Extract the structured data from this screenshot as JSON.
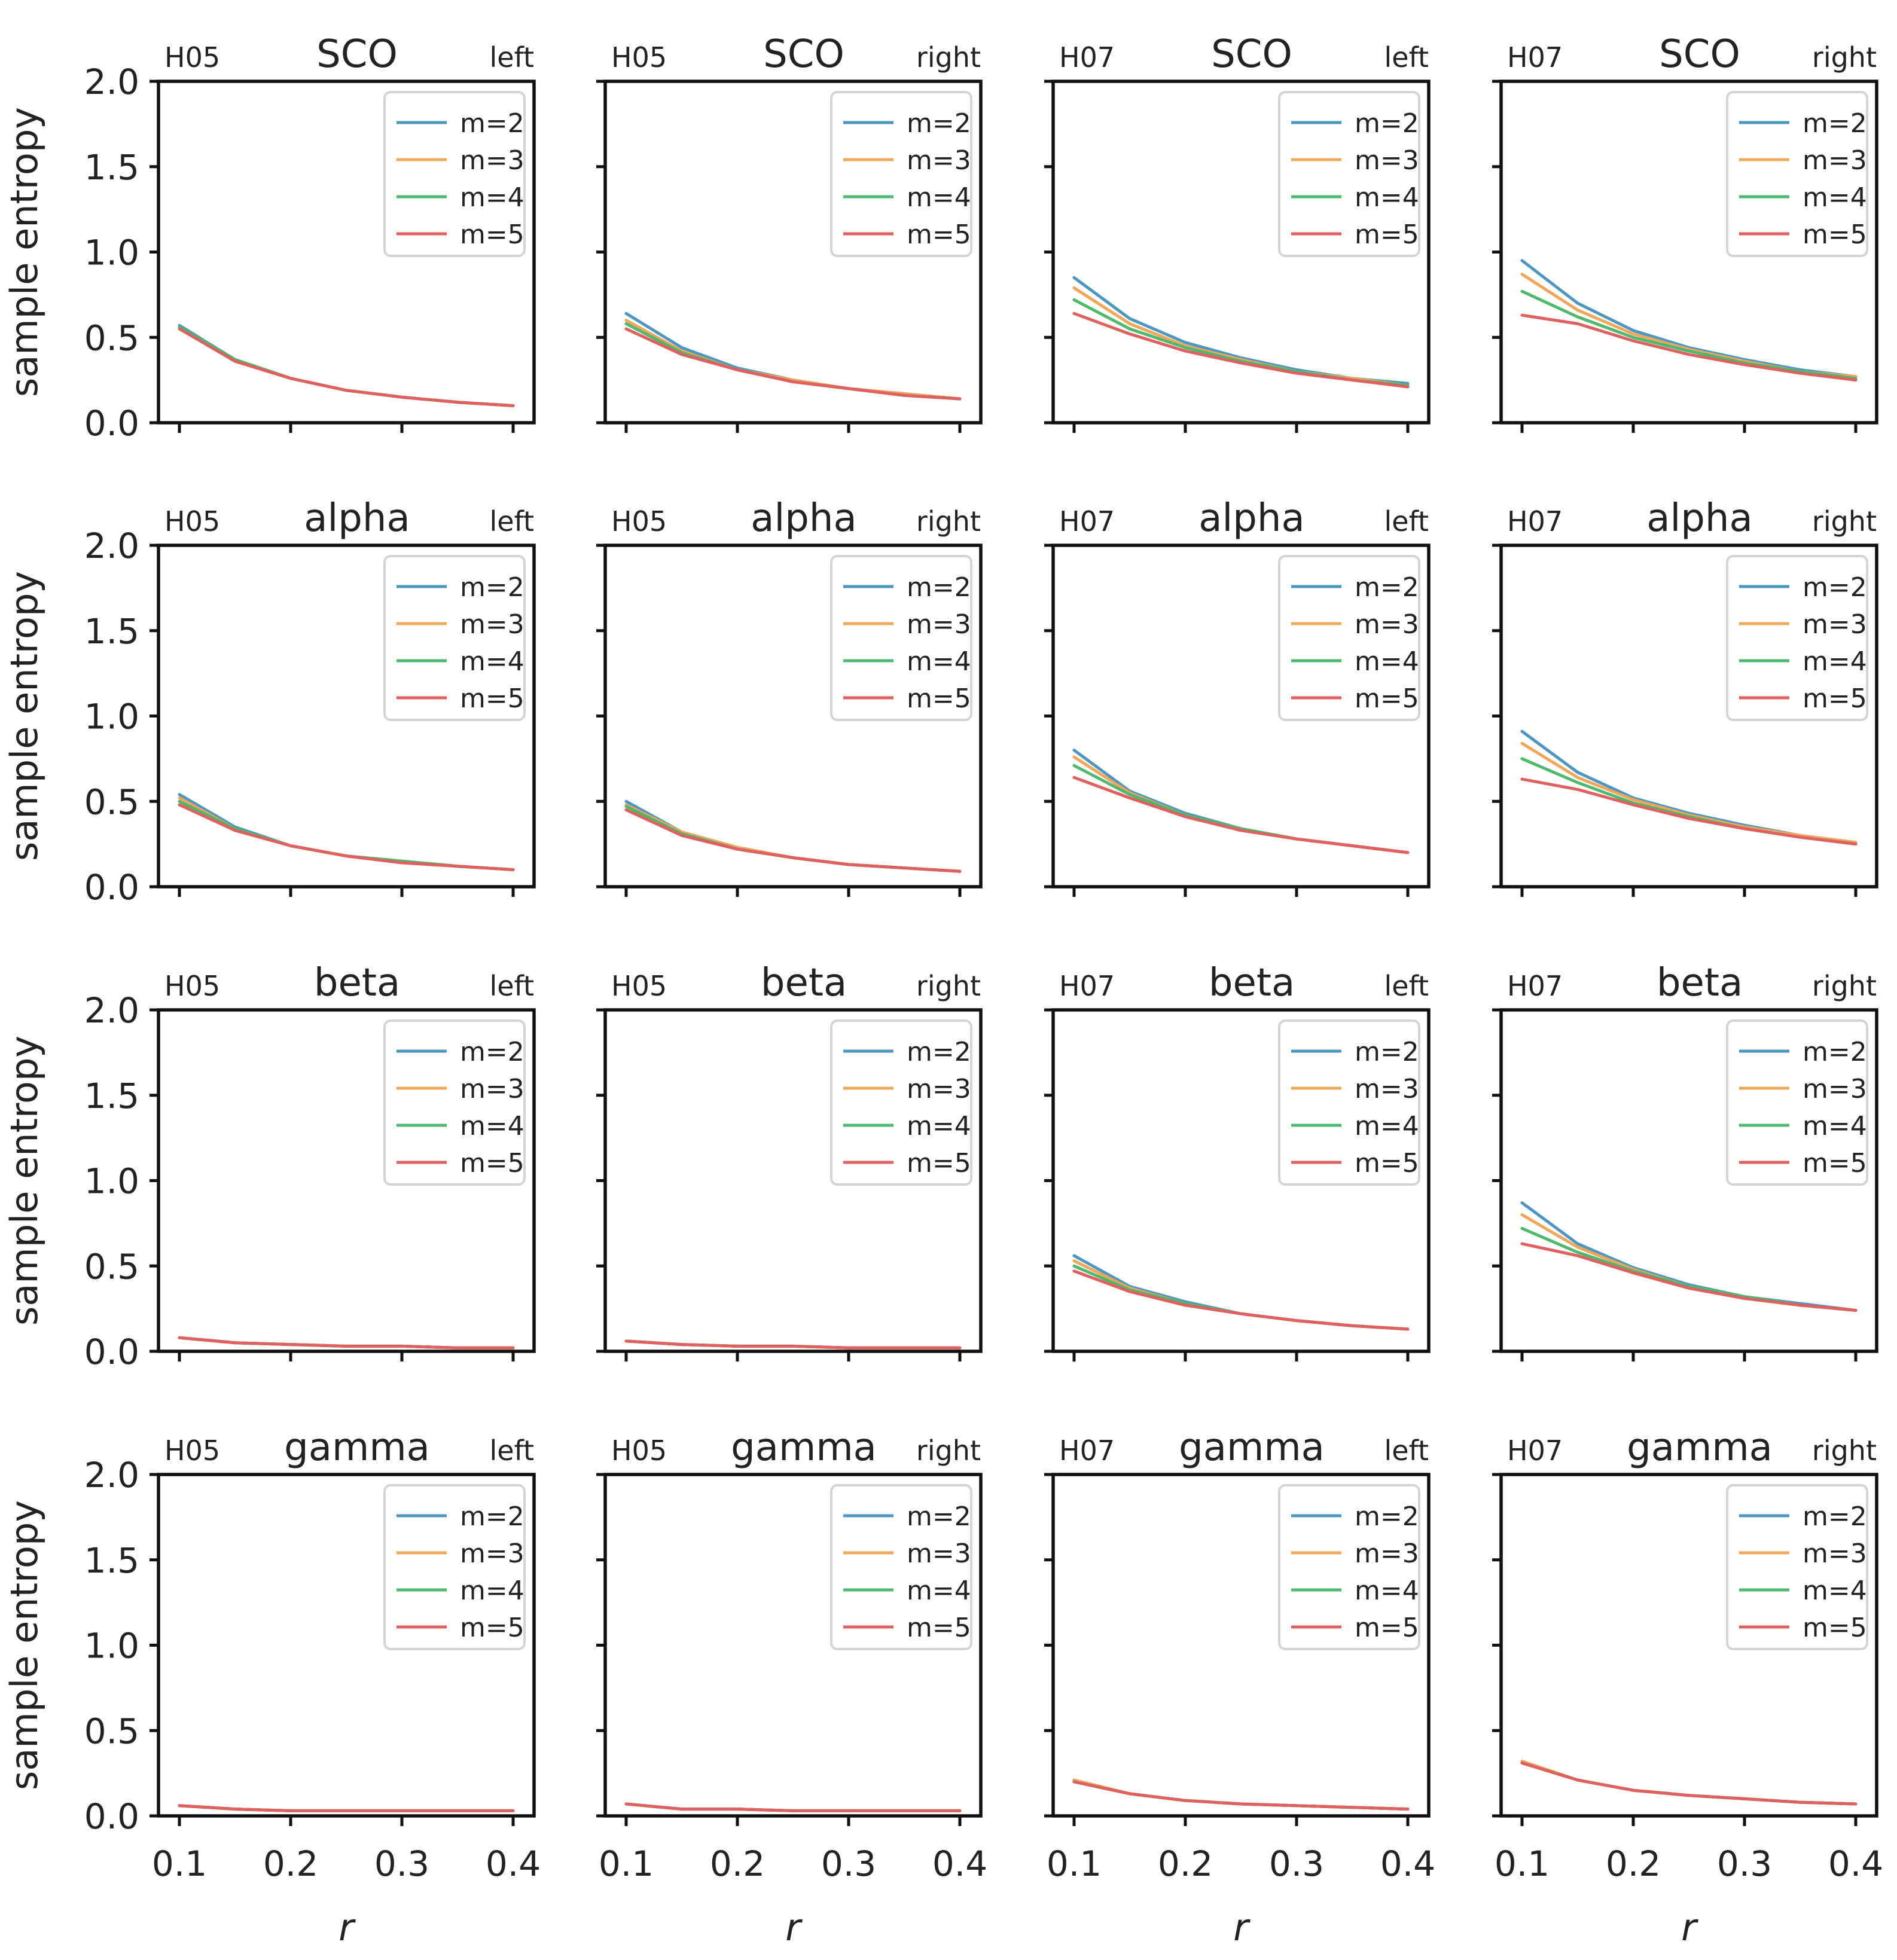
{
  "chart_data": {
    "type": "line",
    "layout": "4x4 small multiples",
    "x": [
      0.1,
      0.15,
      0.2,
      0.25,
      0.3,
      0.35,
      0.4
    ],
    "xlim": [
      0.1,
      0.4
    ],
    "xticks": [
      "0.1",
      "0.2",
      "0.3",
      "0.4"
    ],
    "ylim": [
      0.0,
      2.0
    ],
    "yticks": [
      "0.0",
      "0.5",
      "1.0",
      "1.5",
      "2.0"
    ],
    "xlabel": "r",
    "ylabel": "sample entropy",
    "series_names": [
      "m=2",
      "m=3",
      "m=4",
      "m=5"
    ],
    "series_colors": [
      "#4c96bf",
      "#f2a65a",
      "#4db86e",
      "#e06060"
    ],
    "legend_position": "top-right",
    "grid": false,
    "panels": [
      {
        "subject": "H05",
        "band": "SCO",
        "side": "left",
        "series": [
          {
            "name": "m=2",
            "values": [
              0.57,
              0.37,
              0.26,
              0.19,
              0.15,
              0.12,
              0.1
            ]
          },
          {
            "name": "m=3",
            "values": [
              0.56,
              0.37,
              0.26,
              0.19,
              0.15,
              0.12,
              0.1
            ]
          },
          {
            "name": "m=4",
            "values": [
              0.56,
              0.37,
              0.26,
              0.19,
              0.15,
              0.12,
              0.1
            ]
          },
          {
            "name": "m=5",
            "values": [
              0.55,
              0.36,
              0.26,
              0.19,
              0.15,
              0.12,
              0.1
            ]
          }
        ]
      },
      {
        "subject": "H05",
        "band": "SCO",
        "side": "right",
        "series": [
          {
            "name": "m=2",
            "values": [
              0.64,
              0.44,
              0.32,
              0.25,
              0.2,
              0.17,
              0.14
            ]
          },
          {
            "name": "m=3",
            "values": [
              0.6,
              0.42,
              0.31,
              0.25,
              0.2,
              0.17,
              0.14
            ]
          },
          {
            "name": "m=4",
            "values": [
              0.58,
              0.41,
              0.31,
              0.24,
              0.2,
              0.16,
              0.14
            ]
          },
          {
            "name": "m=5",
            "values": [
              0.55,
              0.4,
              0.31,
              0.24,
              0.2,
              0.16,
              0.14
            ]
          }
        ]
      },
      {
        "subject": "H07",
        "band": "SCO",
        "side": "left",
        "series": [
          {
            "name": "m=2",
            "values": [
              0.85,
              0.61,
              0.47,
              0.38,
              0.31,
              0.26,
              0.23
            ]
          },
          {
            "name": "m=3",
            "values": [
              0.79,
              0.58,
              0.45,
              0.37,
              0.3,
              0.26,
              0.22
            ]
          },
          {
            "name": "m=4",
            "values": [
              0.72,
              0.55,
              0.44,
              0.36,
              0.3,
              0.25,
              0.22
            ]
          },
          {
            "name": "m=5",
            "values": [
              0.64,
              0.52,
              0.42,
              0.35,
              0.29,
              0.25,
              0.21
            ]
          }
        ]
      },
      {
        "subject": "H07",
        "band": "SCO",
        "side": "right",
        "series": [
          {
            "name": "m=2",
            "values": [
              0.95,
              0.7,
              0.54,
              0.44,
              0.37,
              0.31,
              0.27
            ]
          },
          {
            "name": "m=3",
            "values": [
              0.87,
              0.66,
              0.52,
              0.43,
              0.36,
              0.3,
              0.27
            ]
          },
          {
            "name": "m=4",
            "values": [
              0.77,
              0.62,
              0.5,
              0.42,
              0.35,
              0.3,
              0.26
            ]
          },
          {
            "name": "m=5",
            "values": [
              0.63,
              0.58,
              0.48,
              0.4,
              0.34,
              0.29,
              0.25
            ]
          }
        ]
      },
      {
        "subject": "H05",
        "band": "alpha",
        "side": "left",
        "series": [
          {
            "name": "m=2",
            "values": [
              0.54,
              0.35,
              0.24,
              0.18,
              0.15,
              0.12,
              0.1
            ]
          },
          {
            "name": "m=3",
            "values": [
              0.52,
              0.34,
              0.24,
              0.18,
              0.15,
              0.12,
              0.1
            ]
          },
          {
            "name": "m=4",
            "values": [
              0.5,
              0.34,
              0.24,
              0.18,
              0.15,
              0.12,
              0.1
            ]
          },
          {
            "name": "m=5",
            "values": [
              0.48,
              0.33,
              0.24,
              0.18,
              0.14,
              0.12,
              0.1
            ]
          }
        ]
      },
      {
        "subject": "H05",
        "band": "alpha",
        "side": "right",
        "series": [
          {
            "name": "m=2",
            "values": [
              0.5,
              0.32,
              0.23,
              0.17,
              0.13,
              0.11,
              0.09
            ]
          },
          {
            "name": "m=3",
            "values": [
              0.48,
              0.32,
              0.23,
              0.17,
              0.13,
              0.11,
              0.09
            ]
          },
          {
            "name": "m=4",
            "values": [
              0.47,
              0.31,
              0.22,
              0.17,
              0.13,
              0.11,
              0.09
            ]
          },
          {
            "name": "m=5",
            "values": [
              0.45,
              0.3,
              0.22,
              0.17,
              0.13,
              0.11,
              0.09
            ]
          }
        ]
      },
      {
        "subject": "H07",
        "band": "alpha",
        "side": "left",
        "series": [
          {
            "name": "m=2",
            "values": [
              0.8,
              0.56,
              0.43,
              0.34,
              0.28,
              0.24,
              0.2
            ]
          },
          {
            "name": "m=3",
            "values": [
              0.76,
              0.55,
              0.42,
              0.34,
              0.28,
              0.24,
              0.2
            ]
          },
          {
            "name": "m=4",
            "values": [
              0.71,
              0.54,
              0.42,
              0.34,
              0.28,
              0.24,
              0.2
            ]
          },
          {
            "name": "m=5",
            "values": [
              0.64,
              0.52,
              0.41,
              0.33,
              0.28,
              0.24,
              0.2
            ]
          }
        ]
      },
      {
        "subject": "H07",
        "band": "alpha",
        "side": "right",
        "series": [
          {
            "name": "m=2",
            "values": [
              0.91,
              0.67,
              0.52,
              0.43,
              0.36,
              0.3,
              0.26
            ]
          },
          {
            "name": "m=3",
            "values": [
              0.84,
              0.64,
              0.51,
              0.42,
              0.35,
              0.3,
              0.26
            ]
          },
          {
            "name": "m=4",
            "values": [
              0.75,
              0.61,
              0.49,
              0.41,
              0.34,
              0.29,
              0.25
            ]
          },
          {
            "name": "m=5",
            "values": [
              0.63,
              0.57,
              0.48,
              0.4,
              0.34,
              0.29,
              0.25
            ]
          }
        ]
      },
      {
        "subject": "H05",
        "band": "beta",
        "side": "left",
        "series": [
          {
            "name": "m=2",
            "values": [
              0.08,
              0.05,
              0.04,
              0.03,
              0.03,
              0.02,
              0.02
            ]
          },
          {
            "name": "m=3",
            "values": [
              0.08,
              0.05,
              0.04,
              0.03,
              0.03,
              0.02,
              0.02
            ]
          },
          {
            "name": "m=4",
            "values": [
              0.08,
              0.05,
              0.04,
              0.03,
              0.03,
              0.02,
              0.02
            ]
          },
          {
            "name": "m=5",
            "values": [
              0.08,
              0.05,
              0.04,
              0.03,
              0.03,
              0.02,
              0.02
            ]
          }
        ]
      },
      {
        "subject": "H05",
        "band": "beta",
        "side": "right",
        "series": [
          {
            "name": "m=2",
            "values": [
              0.06,
              0.04,
              0.03,
              0.03,
              0.02,
              0.02,
              0.02
            ]
          },
          {
            "name": "m=3",
            "values": [
              0.06,
              0.04,
              0.03,
              0.03,
              0.02,
              0.02,
              0.02
            ]
          },
          {
            "name": "m=4",
            "values": [
              0.06,
              0.04,
              0.03,
              0.03,
              0.02,
              0.02,
              0.02
            ]
          },
          {
            "name": "m=5",
            "values": [
              0.06,
              0.04,
              0.03,
              0.03,
              0.02,
              0.02,
              0.02
            ]
          }
        ]
      },
      {
        "subject": "H07",
        "band": "beta",
        "side": "left",
        "series": [
          {
            "name": "m=2",
            "values": [
              0.56,
              0.38,
              0.29,
              0.22,
              0.18,
              0.15,
              0.13
            ]
          },
          {
            "name": "m=3",
            "values": [
              0.53,
              0.37,
              0.28,
              0.22,
              0.18,
              0.15,
              0.13
            ]
          },
          {
            "name": "m=4",
            "values": [
              0.5,
              0.36,
              0.28,
              0.22,
              0.18,
              0.15,
              0.13
            ]
          },
          {
            "name": "m=5",
            "values": [
              0.47,
              0.35,
              0.27,
              0.22,
              0.18,
              0.15,
              0.13
            ]
          }
        ]
      },
      {
        "subject": "H07",
        "band": "beta",
        "side": "right",
        "series": [
          {
            "name": "m=2",
            "values": [
              0.87,
              0.63,
              0.49,
              0.39,
              0.32,
              0.28,
              0.24
            ]
          },
          {
            "name": "m=3",
            "values": [
              0.8,
              0.61,
              0.48,
              0.38,
              0.32,
              0.27,
              0.24
            ]
          },
          {
            "name": "m=4",
            "values": [
              0.72,
              0.58,
              0.47,
              0.38,
              0.32,
              0.27,
              0.24
            ]
          },
          {
            "name": "m=5",
            "values": [
              0.63,
              0.56,
              0.46,
              0.37,
              0.31,
              0.27,
              0.24
            ]
          }
        ]
      },
      {
        "subject": "H05",
        "band": "gamma",
        "side": "left",
        "series": [
          {
            "name": "m=2",
            "values": [
              0.06,
              0.04,
              0.03,
              0.03,
              0.03,
              0.03,
              0.03
            ]
          },
          {
            "name": "m=3",
            "values": [
              0.06,
              0.04,
              0.03,
              0.03,
              0.03,
              0.03,
              0.03
            ]
          },
          {
            "name": "m=4",
            "values": [
              0.06,
              0.04,
              0.03,
              0.03,
              0.03,
              0.03,
              0.03
            ]
          },
          {
            "name": "m=5",
            "values": [
              0.06,
              0.04,
              0.03,
              0.03,
              0.03,
              0.03,
              0.03
            ]
          }
        ]
      },
      {
        "subject": "H05",
        "band": "gamma",
        "side": "right",
        "series": [
          {
            "name": "m=2",
            "values": [
              0.07,
              0.04,
              0.04,
              0.03,
              0.03,
              0.03,
              0.03
            ]
          },
          {
            "name": "m=3",
            "values": [
              0.07,
              0.04,
              0.04,
              0.03,
              0.03,
              0.03,
              0.03
            ]
          },
          {
            "name": "m=4",
            "values": [
              0.07,
              0.04,
              0.04,
              0.03,
              0.03,
              0.03,
              0.03
            ]
          },
          {
            "name": "m=5",
            "values": [
              0.07,
              0.04,
              0.04,
              0.03,
              0.03,
              0.03,
              0.03
            ]
          }
        ]
      },
      {
        "subject": "H07",
        "band": "gamma",
        "side": "left",
        "series": [
          {
            "name": "m=2",
            "values": [
              0.21,
              0.13,
              0.09,
              0.07,
              0.06,
              0.05,
              0.04
            ]
          },
          {
            "name": "m=3",
            "values": [
              0.21,
              0.13,
              0.09,
              0.07,
              0.06,
              0.05,
              0.04
            ]
          },
          {
            "name": "m=4",
            "values": [
              0.2,
              0.13,
              0.09,
              0.07,
              0.06,
              0.05,
              0.04
            ]
          },
          {
            "name": "m=5",
            "values": [
              0.2,
              0.13,
              0.09,
              0.07,
              0.06,
              0.05,
              0.04
            ]
          }
        ]
      },
      {
        "subject": "H07",
        "band": "gamma",
        "side": "right",
        "series": [
          {
            "name": "m=2",
            "values": [
              0.32,
              0.21,
              0.15,
              0.12,
              0.1,
              0.08,
              0.07
            ]
          },
          {
            "name": "m=3",
            "values": [
              0.32,
              0.21,
              0.15,
              0.12,
              0.1,
              0.08,
              0.07
            ]
          },
          {
            "name": "m=4",
            "values": [
              0.31,
              0.21,
              0.15,
              0.12,
              0.1,
              0.08,
              0.07
            ]
          },
          {
            "name": "m=5",
            "values": [
              0.31,
              0.21,
              0.15,
              0.12,
              0.1,
              0.08,
              0.07
            ]
          }
        ]
      }
    ]
  }
}
